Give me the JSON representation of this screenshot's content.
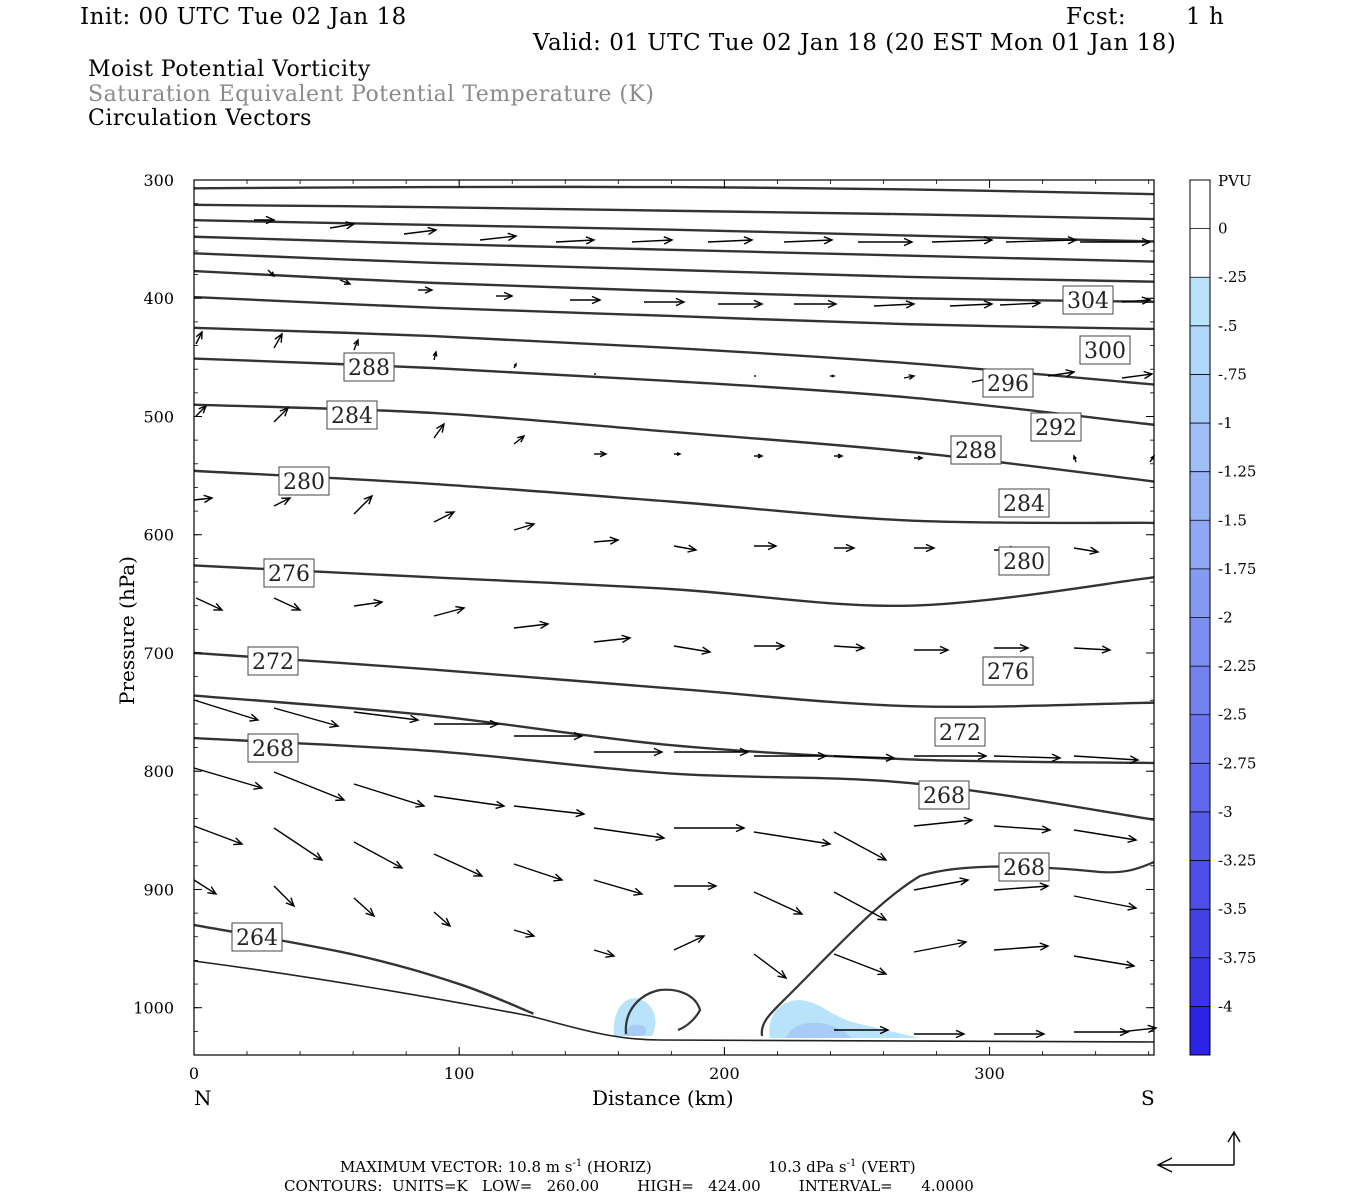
{
  "header": {
    "init": "Init: 00 UTC Tue 02 Jan 18",
    "fcst_label": "Fcst:",
    "fcst_value": "1 h",
    "valid": "Valid: 01 UTC Tue 02 Jan 18 (20 EST Mon 01 Jan 18)"
  },
  "fields": {
    "line1": "Moist Potential Vorticity",
    "line2": "Saturation Equivalent Potential Temperature (K)",
    "line3": "Circulation Vectors"
  },
  "footer": {
    "max_vector": "MAXIMUM VECTOR:  10.8 m s",
    "max_vector_exp": "-1",
    "max_vector_horiz": " (HORIZ)",
    "max_vector_vert": "10.3 dPa s",
    "max_vector_vert_exp": "-1",
    "max_vector_vert_tail": " (VERT)",
    "contours": "CONTOURS:  UNITS=K   LOW=   260.00        HIGH=   424.00        INTERVAL=      4.0000"
  },
  "chart_data": {
    "type": "contour",
    "xlabel": "Distance (km)",
    "ylabel": "Pressure (hPa)",
    "x_ticks": [
      0,
      100,
      200,
      300
    ],
    "y_ticks": [
      300,
      400,
      500,
      600,
      700,
      800,
      900,
      1000
    ],
    "xlim": [
      0,
      362
    ],
    "ylim": [
      300,
      1040
    ],
    "x_end_labels": {
      "left": "N",
      "right": "S"
    },
    "contour_color": "#333333",
    "contours": [
      {
        "label": "",
        "x": [
          0,
          90,
          180,
          270,
          362
        ],
        "p": [
          307,
          306,
          306,
          308,
          312
        ]
      },
      {
        "label": "",
        "x": [
          0,
          90,
          180,
          270,
          362
        ],
        "p": [
          321,
          323,
          326,
          329,
          333
        ]
      },
      {
        "label": "",
        "x": [
          0,
          90,
          180,
          270,
          362
        ],
        "p": [
          334,
          338,
          342,
          347,
          352
        ]
      },
      {
        "label": "",
        "x": [
          0,
          90,
          180,
          270,
          362
        ],
        "p": [
          348,
          354,
          359,
          364,
          369
        ]
      },
      {
        "label": "",
        "x": [
          0,
          90,
          180,
          270,
          362
        ],
        "p": [
          362,
          370,
          376,
          382,
          386
        ]
      },
      {
        "label": "304",
        "x": [
          0,
          90,
          180,
          270,
          362
        ],
        "p": [
          377,
          387,
          394,
          400,
          403
        ]
      },
      {
        "label": "300",
        "x": [
          0,
          90,
          180,
          270,
          362
        ],
        "p": [
          399,
          408,
          415,
          422,
          426
        ]
      },
      {
        "label": "296",
        "x": [
          0,
          90,
          180,
          270,
          362
        ],
        "p": [
          425,
          432,
          442,
          455,
          473
        ]
      },
      {
        "label": "292",
        "x": [
          0,
          90,
          180,
          270,
          362
        ],
        "p": [
          451,
          459,
          470,
          484,
          507
        ]
      },
      {
        "label": "288",
        "x": [
          0,
          90,
          180,
          270,
          362
        ],
        "p": [
          490,
          497,
          513,
          530,
          555
        ]
      },
      {
        "label": "284",
        "x": [
          0,
          90,
          180,
          270,
          362
        ],
        "p": [
          546,
          557,
          572,
          588,
          590
        ]
      },
      {
        "label": "280",
        "x": [
          0,
          90,
          180,
          270,
          362
        ],
        "p": [
          626,
          636,
          646,
          660,
          636
        ]
      },
      {
        "label": "276",
        "x": [
          0,
          90,
          180,
          270,
          362
        ],
        "p": [
          700,
          714,
          730,
          745,
          742
        ]
      },
      {
        "label": "272",
        "x": [
          0,
          90,
          180,
          270,
          362
        ],
        "p": [
          736,
          753,
          778,
          790,
          793
        ]
      },
      {
        "label": "268",
        "x": [
          0,
          90,
          180,
          270,
          362
        ],
        "p": [
          772,
          783,
          802,
          810,
          841
        ]
      },
      {
        "label": "264",
        "x": [
          0,
          60,
          100,
          128
        ],
        "p": [
          930,
          955,
          980,
          1005
        ]
      }
    ],
    "label_positions_note": "",
    "colorbar": {
      "title": "PVU",
      "levels": [
        "0",
        "-.25",
        "-.5",
        "-.75",
        "-1",
        "-1.25",
        "-1.5",
        "-1.75",
        "-2",
        "-2.25",
        "-2.5",
        "-2.75",
        "-3",
        "-3.25",
        "-3.5",
        "-3.75",
        "-4"
      ],
      "colors": [
        "#ffffff",
        "#ffffff",
        "#b9e3fb",
        "#b1d6fa",
        "#a8cbf8",
        "#a0bff6",
        "#97b3f5",
        "#8ea6f3",
        "#859af1",
        "#7c8ef0",
        "#7381ee",
        "#6a74ec",
        "#6168eb",
        "#575be9",
        "#4d4ee8",
        "#4341e6",
        "#3a34e4",
        "#2b22e3"
      ]
    },
    "shaded_regions": [
      {
        "level": "-.5",
        "color": "#b9e3fb"
      },
      {
        "level": "-.75",
        "color": "#a8cbf8"
      }
    ],
    "vectors_note": "circulation vectors: westward aloft, eastward/downward at low levels"
  }
}
